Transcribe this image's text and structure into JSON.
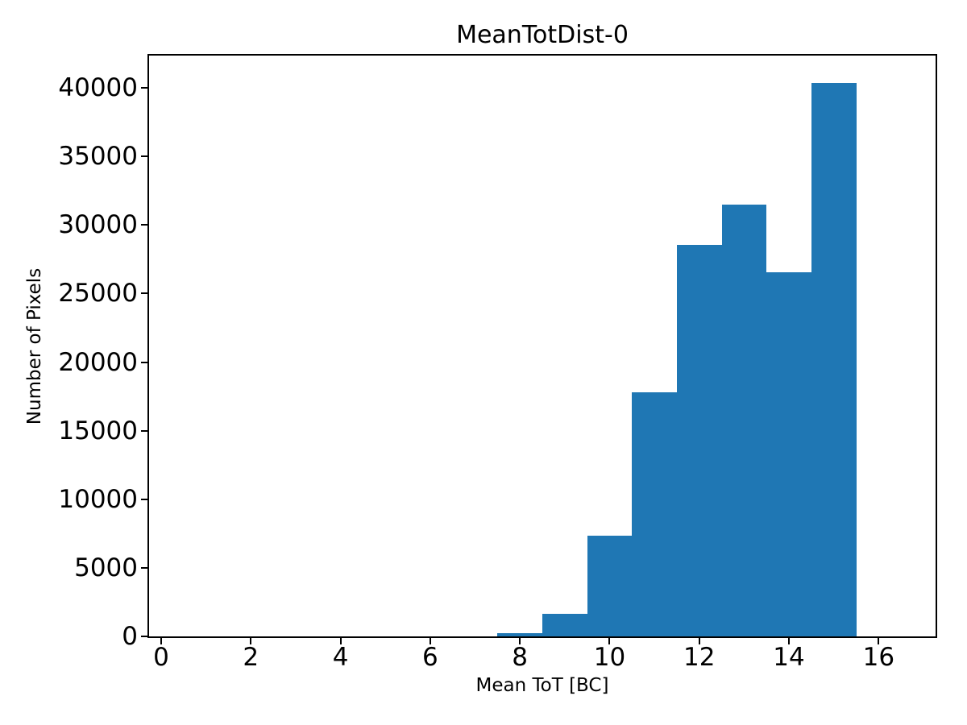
{
  "chart_data": {
    "type": "bar",
    "subtype": "histogram",
    "title": "MeanTotDist-0",
    "xlabel": "Mean ToT [BC]",
    "ylabel": "Number of Pixels",
    "bar_color": "#1f77b4",
    "axis_color": "#000000",
    "background_color": "#ffffff",
    "bin_edges": [
      7.5,
      8.5,
      9.5,
      10.5,
      11.5,
      12.5,
      13.5,
      14.5,
      15.5
    ],
    "counts": [
      260,
      1640,
      7360,
      17820,
      28560,
      31470,
      26570,
      40350
    ],
    "xlim": [
      -0.27,
      17.27
    ],
    "ylim": [
      0,
      42350
    ],
    "xticks": [
      0,
      2,
      4,
      6,
      8,
      10,
      12,
      14,
      16
    ],
    "yticks": [
      0,
      5000,
      10000,
      15000,
      20000,
      25000,
      30000,
      35000,
      40000
    ],
    "grid": false,
    "legend": null
  }
}
